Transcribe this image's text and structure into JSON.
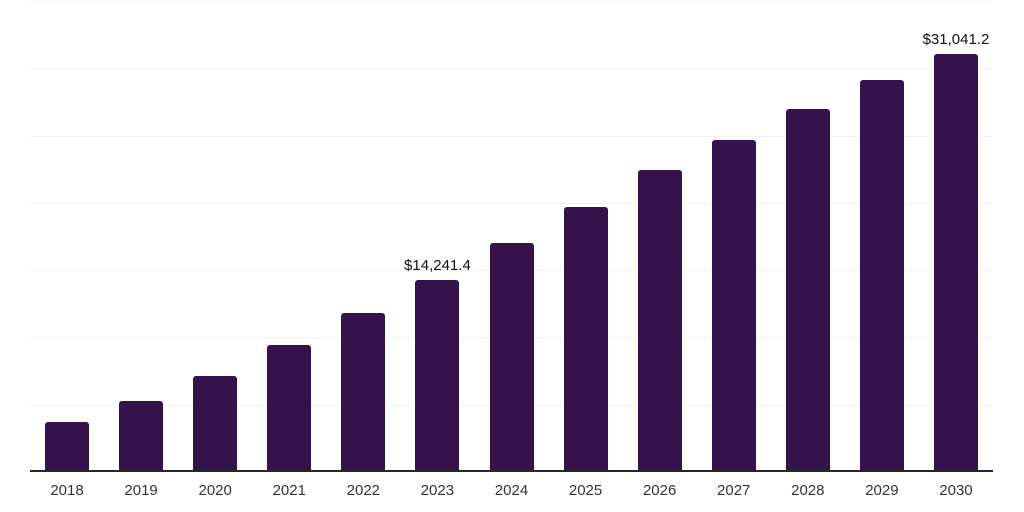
{
  "chart": {
    "background_color": "#ffffff",
    "bar_color": "#35124a",
    "gridline_color": "#f0f0f0",
    "axis_color": "#262626",
    "tick_label_color": "#333333",
    "value_label_color": "#111111"
  },
  "chart_data": {
    "type": "bar",
    "categories": [
      "2018",
      "2019",
      "2020",
      "2021",
      "2022",
      "2023",
      "2024",
      "2025",
      "2026",
      "2027",
      "2028",
      "2029",
      "2030"
    ],
    "values": [
      3740,
      5280,
      7160,
      9440,
      11790,
      14241.4,
      17000,
      19690,
      22440,
      24670,
      26950,
      29130,
      31041.2
    ],
    "title": "",
    "xlabel": "",
    "ylabel": "",
    "ylim": [
      0,
      35000
    ],
    "grid_step": 5000,
    "grid": true,
    "legend": false,
    "annotations": [
      {
        "category": "2023",
        "text": "$14,241.4"
      },
      {
        "category": "2030",
        "text": "$31,041.2"
      }
    ]
  }
}
